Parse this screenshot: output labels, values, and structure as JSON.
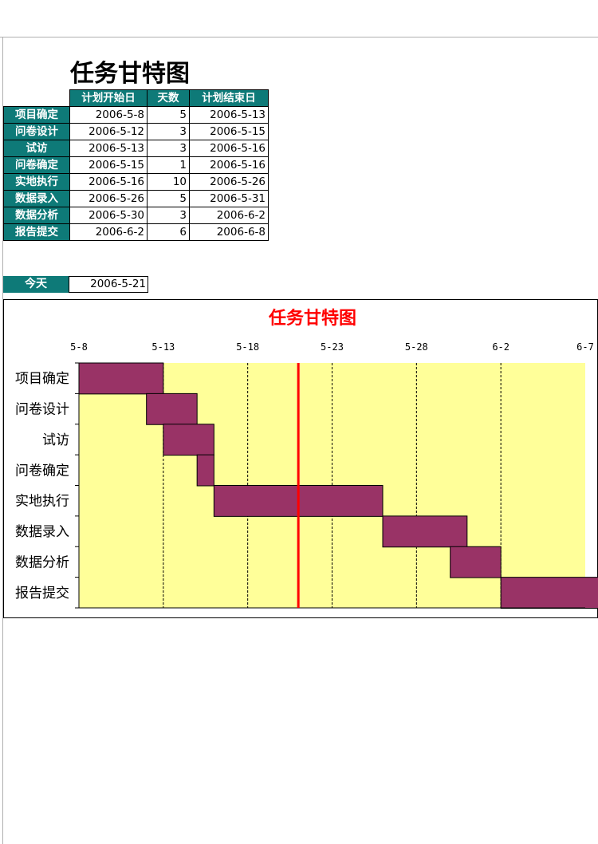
{
  "sheet": {
    "title": "任务甘特图"
  },
  "table": {
    "headers": [
      "计划开始日",
      "天数",
      "计划结束日"
    ],
    "rows": [
      {
        "name": "项目确定",
        "start": "2006-5-8",
        "days": "5",
        "end": "2006-5-13"
      },
      {
        "name": "问卷设计",
        "start": "2006-5-12",
        "days": "3",
        "end": "2006-5-15"
      },
      {
        "name": "试访",
        "start": "2006-5-13",
        "days": "3",
        "end": "2006-5-16"
      },
      {
        "name": "问卷确定",
        "start": "2006-5-15",
        "days": "1",
        "end": "2006-5-16"
      },
      {
        "name": "实地执行",
        "start": "2006-5-16",
        "days": "10",
        "end": "2006-5-26"
      },
      {
        "name": "数据录入",
        "start": "2006-5-26",
        "days": "5",
        "end": "2006-5-31"
      },
      {
        "name": "数据分析",
        "start": "2006-5-30",
        "days": "3",
        "end": "2006-6-2"
      },
      {
        "name": "报告提交",
        "start": "2006-6-2",
        "days": "6",
        "end": "2006-6-8"
      }
    ]
  },
  "today": {
    "label": "今天",
    "value": "2006-5-21"
  },
  "chart_data": {
    "type": "bar",
    "orientation": "horizontal",
    "stacked_gantt": true,
    "title": "任务甘特图",
    "categories": [
      "项目确定",
      "问卷设计",
      "试访",
      "问卷确定",
      "实地执行",
      "数据录入",
      "数据分析",
      "报告提交"
    ],
    "start": [
      "2006-05-08",
      "2006-05-12",
      "2006-05-13",
      "2006-05-15",
      "2006-05-16",
      "2006-05-26",
      "2006-05-30",
      "2006-06-02"
    ],
    "duration_days": [
      5,
      3,
      3,
      1,
      10,
      5,
      3,
      6
    ],
    "xlim": [
      "2006-05-08",
      "2006-06-07"
    ],
    "x_ticks": [
      "5-8",
      "5-13",
      "5-18",
      "5-23",
      "5-28",
      "6-2",
      "6-7"
    ],
    "today_line": "2006-05-21",
    "grid": "vertical dashed",
    "colors": {
      "bar": "#993366",
      "plot_bg": "#ffff99",
      "today": "#ff0000",
      "title": "#ff0000"
    }
  }
}
